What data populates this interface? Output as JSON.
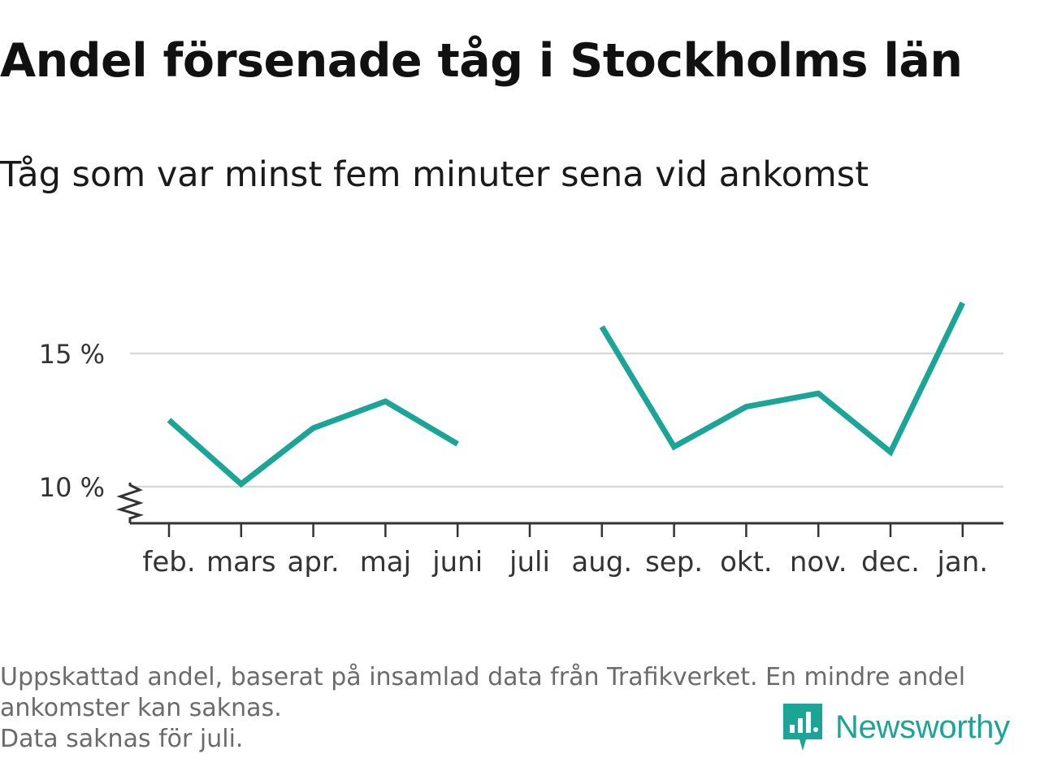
{
  "title": "Andel försenade tåg i Stockholms län",
  "subtitle": "Tåg som var minst fem minuter sena vid ankomst",
  "footnote": {
    "line1": "Uppskattad andel, baserat på insamlad data från Trafikverket. En mindre andel",
    "line2": "ankomster kan saknas.",
    "line3": "Data saknas för juli."
  },
  "brand": {
    "name": "Newsworthy",
    "icon": "newsworthy-logo-icon",
    "color": "#1aa597"
  },
  "chart_data": {
    "type": "line",
    "categories": [
      "feb.",
      "mars",
      "apr.",
      "maj",
      "juni",
      "juli",
      "aug.",
      "sep.",
      "okt.",
      "nov.",
      "dec.",
      "jan."
    ],
    "series": [
      {
        "values": [
          12.5,
          10.1,
          12.2,
          13.2,
          11.6,
          null,
          16.0,
          11.5,
          13.0,
          13.5,
          11.3,
          16.9
        ],
        "color": "#1aa597"
      }
    ],
    "y_ticks": [
      10,
      15
    ],
    "y_tick_labels": [
      "10 %",
      "15 %"
    ],
    "ylim": [
      8.6,
      18
    ],
    "axis_break": true,
    "grid": "horizontal",
    "legend": "none"
  }
}
